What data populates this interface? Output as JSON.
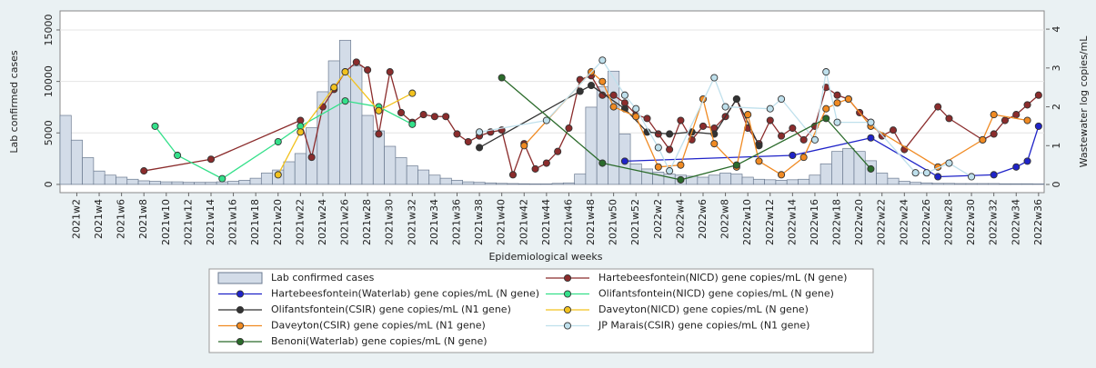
{
  "chart_data": {
    "type": "bar-line",
    "x_label": "Epidemiological weeks",
    "y_label": "Lab confirmed cases",
    "y2_label": "Wastewater log copies/mL",
    "ylim": [
      -800,
      16850
    ],
    "yticks": [
      0,
      5000,
      10000,
      15000
    ],
    "y2lim": [
      -0.21,
      4.47
    ],
    "y2ticks": [
      0,
      1,
      2,
      3,
      4
    ],
    "grid": true,
    "categories": [
      null,
      "2021w2",
      null,
      "2021w4",
      null,
      "2021w6",
      null,
      "2021w8",
      null,
      "2021w10",
      null,
      "2021w12",
      null,
      "2021w14",
      null,
      "2021w16",
      null,
      "2021w18",
      null,
      "2021w20",
      null,
      "2021w22",
      null,
      "2021w24",
      null,
      "2021w26",
      null,
      "2021w28",
      null,
      "2021w30",
      null,
      "2021w32",
      null,
      "2021w34",
      null,
      "2021w36",
      null,
      "2021w38",
      null,
      "2021w40",
      null,
      "2021w42",
      null,
      "2021w44",
      null,
      "2021w46",
      null,
      "2021w48",
      null,
      "2021w50",
      null,
      "2021w52",
      null,
      "2022w2",
      null,
      "2022w4",
      null,
      "2022w6",
      null,
      "2022w8",
      null,
      "2022w10",
      null,
      "2022w12",
      null,
      "2022w14",
      null,
      "2022w16",
      null,
      "2022w18",
      null,
      "2022w20",
      null,
      "2022w22",
      null,
      "2022w24",
      null,
      "2022w26",
      null,
      "2022w28",
      null,
      "2022w30",
      null,
      "2022w32",
      null,
      "2022w34",
      null,
      "2022w36"
    ],
    "bars": {
      "name": "Lab confirmed cases",
      "color": "#d3dce8",
      "edge": "#6b7a90",
      "values": [
        6700,
        4300,
        2600,
        1300,
        900,
        700,
        500,
        350,
        300,
        250,
        250,
        200,
        200,
        200,
        250,
        300,
        400,
        600,
        1100,
        1400,
        2200,
        3000,
        5500,
        9000,
        12000,
        14000,
        11500,
        6700,
        5200,
        3700,
        2600,
        1800,
        1400,
        900,
        600,
        400,
        250,
        200,
        150,
        100,
        80,
        60,
        50,
        50,
        100,
        150,
        1000,
        7500,
        9500,
        11000,
        4900,
        2000,
        1500,
        1200,
        1000,
        900,
        800,
        700,
        900,
        1100,
        1000,
        700,
        500,
        450,
        400,
        450,
        500,
        900,
        2000,
        3200,
        3500,
        3200,
        2300,
        1100,
        600,
        300,
        200,
        150,
        100,
        100,
        80,
        80,
        80,
        80,
        60,
        60,
        60,
        50
      ]
    },
    "series": [
      {
        "name": "Hartebeesfontein(NICD) gene copies/mL (N gene)",
        "color": "#8b2c2c",
        "axis": "y2",
        "values": [
          null,
          null,
          null,
          null,
          null,
          null,
          null,
          0.35,
          null,
          null,
          null,
          null,
          null,
          0.65,
          null,
          null,
          null,
          null,
          null,
          null,
          null,
          1.65,
          0.7,
          2.0,
          2.45,
          2.9,
          3.15,
          2.95,
          1.3,
          2.9,
          1.85,
          1.6,
          1.8,
          1.75,
          1.75,
          1.3,
          1.1,
          1.25,
          1.35,
          1.4,
          0.25,
          1.05,
          0.4,
          0.55,
          0.85,
          1.45,
          2.7,
          2.8,
          2.3,
          2.3,
          2.1,
          1.8,
          1.7,
          1.3,
          0.9,
          1.65,
          1.15,
          1.5,
          1.45,
          1.75,
          2.2,
          1.45,
          1.05,
          1.65,
          1.25,
          1.45,
          1.15,
          1.5,
          2.5,
          2.3,
          2.2,
          1.85,
          1.6,
          1.25,
          1.4,
          0.9,
          null,
          null,
          2.0,
          1.7,
          null,
          null,
          1.15,
          1.3,
          1.65,
          1.8,
          2.05,
          2.3
        ]
      },
      {
        "name": "Hartebeesfontein(Waterlab) gene copies/mL (N gene)",
        "color": "#1f23c8",
        "axis": "y2",
        "values": [
          null,
          null,
          null,
          null,
          null,
          null,
          null,
          null,
          null,
          null,
          null,
          null,
          null,
          null,
          null,
          null,
          null,
          null,
          null,
          null,
          null,
          null,
          null,
          null,
          null,
          null,
          null,
          null,
          null,
          null,
          null,
          null,
          null,
          null,
          null,
          null,
          null,
          null,
          null,
          null,
          null,
          null,
          null,
          null,
          null,
          null,
          null,
          null,
          null,
          null,
          0.6,
          null,
          null,
          null,
          null,
          null,
          null,
          null,
          null,
          null,
          null,
          null,
          null,
          null,
          null,
          0.75,
          null,
          null,
          null,
          null,
          null,
          null,
          1.2,
          null,
          null,
          null,
          null,
          null,
          0.2,
          null,
          null,
          null,
          null,
          0.25,
          null,
          0.45,
          0.6,
          1.5
        ]
      },
      {
        "name": "Olifantsfontein(NICD) gene copies/mL (N gene)",
        "color": "#34e08a",
        "axis": "y2",
        "values": [
          null,
          null,
          null,
          null,
          null,
          null,
          null,
          null,
          1.5,
          null,
          0.75,
          null,
          null,
          null,
          0.15,
          null,
          null,
          null,
          null,
          1.1,
          null,
          1.5,
          null,
          null,
          null,
          2.15,
          null,
          null,
          2.0,
          null,
          null,
          1.55,
          null,
          null,
          null,
          null,
          null,
          null,
          null,
          null,
          null,
          null,
          null,
          null,
          null,
          null,
          null,
          null,
          null,
          null,
          null,
          null,
          null,
          null,
          null,
          null,
          null,
          null,
          null,
          null,
          null,
          null,
          null,
          null,
          null,
          null,
          null,
          null,
          null,
          null,
          null,
          null,
          null,
          null,
          null,
          null,
          null,
          null,
          null,
          null,
          null,
          null,
          null,
          null,
          null,
          null,
          null,
          null
        ]
      },
      {
        "name": "Olifantsfontein(CSIR) gene copies/mL (N1 gene)",
        "color": "#333333",
        "axis": "y2",
        "values": [
          null,
          null,
          null,
          null,
          null,
          null,
          null,
          null,
          null,
          null,
          null,
          null,
          null,
          null,
          null,
          null,
          null,
          null,
          null,
          null,
          null,
          null,
          null,
          null,
          null,
          null,
          null,
          null,
          null,
          null,
          null,
          null,
          null,
          null,
          null,
          null,
          null,
          0.95,
          null,
          null,
          null,
          null,
          null,
          null,
          null,
          null,
          2.4,
          2.55,
          null,
          null,
          1.95,
          null,
          1.35,
          null,
          1.3,
          null,
          1.35,
          null,
          1.3,
          null,
          2.2,
          null,
          1.0,
          null,
          null,
          null,
          null,
          null,
          null,
          null,
          null,
          null,
          null,
          null,
          null,
          null,
          null,
          null,
          null,
          null,
          null,
          null,
          null,
          null,
          null,
          null,
          null,
          null
        ]
      },
      {
        "name": "Daveyton(NICD) gene copies/mL (N gene)",
        "color": "#f2c21e",
        "axis": "y2",
        "values": [
          null,
          null,
          null,
          null,
          null,
          null,
          null,
          null,
          null,
          null,
          null,
          null,
          null,
          null,
          null,
          null,
          null,
          null,
          null,
          0.25,
          null,
          1.35,
          null,
          null,
          2.5,
          2.9,
          null,
          null,
          1.9,
          null,
          null,
          2.35,
          null,
          null,
          null,
          null,
          null,
          null,
          null,
          null,
          null,
          null,
          null,
          null,
          null,
          null,
          null,
          null,
          null,
          null,
          null,
          null,
          null,
          null,
          null,
          null,
          null,
          null,
          null,
          null,
          null,
          null,
          null,
          null,
          null,
          null,
          null,
          null,
          null,
          null,
          null,
          null,
          null,
          null,
          null,
          null,
          null,
          null,
          null,
          null,
          null,
          null,
          null,
          null,
          null,
          null,
          null,
          null
        ]
      },
      {
        "name": "Daveyton(CSIR) gene copies/mL (N1 gene)",
        "color": "#f08a22",
        "axis": "y2",
        "values": [
          null,
          null,
          null,
          null,
          null,
          null,
          null,
          null,
          null,
          null,
          null,
          null,
          null,
          null,
          null,
          null,
          null,
          null,
          null,
          null,
          null,
          null,
          null,
          null,
          null,
          null,
          null,
          null,
          null,
          null,
          null,
          null,
          null,
          null,
          null,
          null,
          null,
          null,
          null,
          null,
          null,
          1.0,
          null,
          null,
          null,
          null,
          null,
          2.9,
          2.65,
          2.0,
          null,
          1.75,
          null,
          0.45,
          null,
          0.5,
          null,
          2.2,
          1.05,
          null,
          0.45,
          1.8,
          0.6,
          null,
          0.25,
          null,
          0.7,
          null,
          1.95,
          2.1,
          2.2,
          null,
          1.5,
          null,
          null,
          null,
          null,
          null,
          0.45,
          null,
          null,
          null,
          1.15,
          1.8,
          null,
          null,
          1.65,
          null
        ]
      },
      {
        "name": "JP Marais(CSIR) gene copies/mL (N1 gene)",
        "color": "#bfe0ec",
        "axis": "y2",
        "values": [
          null,
          null,
          null,
          null,
          null,
          null,
          null,
          null,
          null,
          null,
          null,
          null,
          null,
          null,
          null,
          null,
          null,
          null,
          null,
          null,
          null,
          null,
          null,
          null,
          null,
          null,
          null,
          null,
          null,
          null,
          null,
          null,
          null,
          null,
          null,
          null,
          null,
          1.35,
          null,
          null,
          null,
          null,
          null,
          1.65,
          null,
          null,
          null,
          null,
          3.2,
          null,
          2.3,
          1.95,
          null,
          0.95,
          0.35,
          null,
          null,
          null,
          2.75,
          2.0,
          null,
          null,
          null,
          1.95,
          2.2,
          null,
          null,
          1.15,
          2.9,
          1.6,
          null,
          null,
          1.6,
          null,
          null,
          null,
          0.3,
          0.3,
          null,
          0.55,
          null,
          0.2,
          null,
          null,
          null,
          null,
          null,
          null
        ]
      },
      {
        "name": "Benoni(Waterlab) gene copies/mL (N gene)",
        "color": "#2b6b2b",
        "axis": "y2",
        "values": [
          null,
          null,
          null,
          null,
          null,
          null,
          null,
          null,
          null,
          null,
          null,
          null,
          null,
          null,
          null,
          null,
          null,
          null,
          null,
          null,
          null,
          null,
          null,
          null,
          null,
          null,
          null,
          null,
          null,
          null,
          null,
          null,
          null,
          null,
          null,
          null,
          null,
          null,
          null,
          2.75,
          null,
          null,
          null,
          null,
          null,
          null,
          null,
          null,
          0.55,
          null,
          null,
          null,
          null,
          null,
          null,
          0.12,
          null,
          null,
          null,
          null,
          0.5,
          null,
          null,
          null,
          null,
          null,
          null,
          null,
          1.7,
          null,
          null,
          null,
          0.4,
          null,
          null,
          null,
          null,
          null,
          null,
          null,
          null,
          null,
          null,
          null,
          null,
          null,
          null,
          null
        ]
      }
    ]
  }
}
